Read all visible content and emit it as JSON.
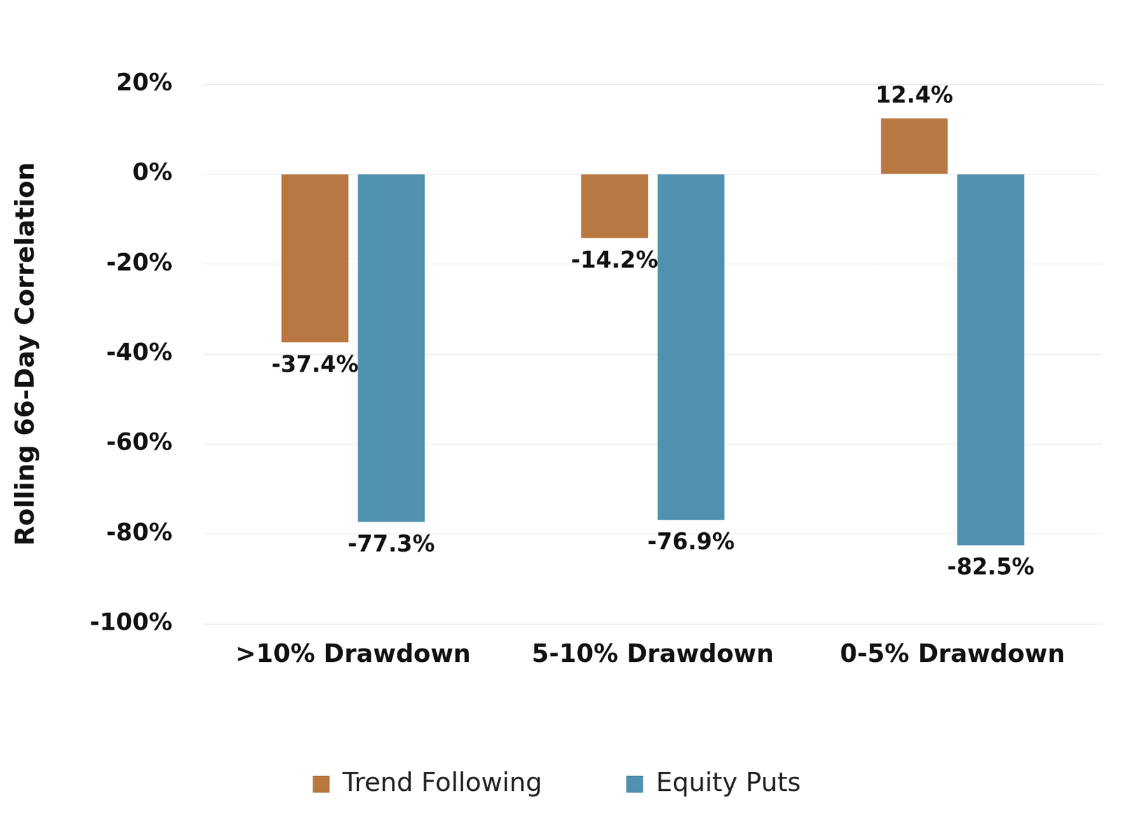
{
  "chart_data": {
    "type": "bar",
    "y_label": "Rolling 66-Day Correlation",
    "categories": [
      ">10% Drawdown",
      "5-10% Drawdown",
      "0-5% Drawdown"
    ],
    "series": [
      {
        "name": "Trend Following",
        "color": "#b87841",
        "values": [
          -37.4,
          -14.2,
          12.4
        ],
        "value_labels": [
          "-37.4%",
          "-14.2%",
          "12.4%"
        ]
      },
      {
        "name": "Equity Puts",
        "color": "#4f91ae",
        "values": [
          -77.3,
          -76.9,
          -82.5
        ],
        "value_labels": [
          "-77.3%",
          "-76.9%",
          "-82.5%"
        ]
      }
    ],
    "ylim": [
      -100,
      20
    ],
    "yticks": [
      {
        "value": -100,
        "label": "-100%"
      },
      {
        "value": -80,
        "label": "-80%"
      },
      {
        "value": -60,
        "label": "-60%"
      },
      {
        "value": -40,
        "label": "-40%"
      },
      {
        "value": -20,
        "label": "-20%"
      },
      {
        "value": 0,
        "label": "0%"
      },
      {
        "value": 20,
        "label": "20%"
      }
    ],
    "grid": true,
    "legend": "bottom",
    "data_labels": true
  }
}
